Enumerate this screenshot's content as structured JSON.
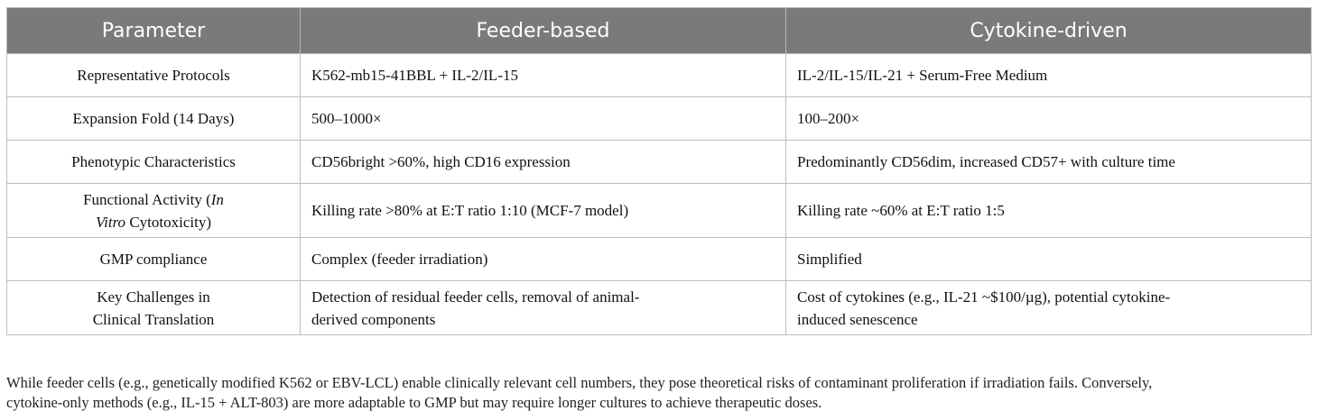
{
  "table": {
    "headers": [
      "Parameter",
      "Feeder-based",
      "Cytokine-driven"
    ],
    "rows": [
      {
        "parameter": "Representative Protocols",
        "feeder": "K562-mb15-41BBL + IL-2/IL-15",
        "cytokine": "IL-2/IL-15/IL-21 + Serum-Free Medium"
      },
      {
        "parameter": "Expansion Fold (14 Days)",
        "feeder": "500–1000×",
        "cytokine": "100–200×"
      },
      {
        "parameter": "Phenotypic Characteristics",
        "feeder": "CD56bright >60%, high CD16 expression",
        "cytokine": "Predominantly CD56dim, increased CD57+ with culture time"
      },
      {
        "parameter_pre": "Functional Activity (",
        "parameter_italic1": "In",
        "parameter_italic2": "Vitro",
        "parameter_post": " Cytotoxicity)",
        "feeder": "Killing rate >80% at E:T ratio 1:10 (MCF-7 model)",
        "cytokine": "Killing rate ~60% at E:T ratio 1:5"
      },
      {
        "parameter": "GMP compliance",
        "feeder": "Complex (feeder irradiation)",
        "cytokine": "Simplified"
      },
      {
        "parameter_line1": "Key Challenges in",
        "parameter_line2": "Clinical Translation",
        "feeder_line1": "Detection of residual feeder cells, removal of animal-",
        "feeder_line2": "derived components",
        "cytokine_line1": "Cost of cytokines (e.g., IL-21 ~$100/µg), potential cytokine-",
        "cytokine_line2": "induced senescence"
      }
    ]
  },
  "footnote_line1": "While feeder cells (e.g., genetically modified K562 or EBV-LCL) enable clinically relevant cell numbers, they pose theoretical risks of contaminant proliferation if irradiation fails. Conversely,",
  "footnote_line2": "cytokine-only methods (e.g., IL-15 + ALT-803) are more adaptable to GMP but may require longer cultures to achieve therapeutic doses."
}
